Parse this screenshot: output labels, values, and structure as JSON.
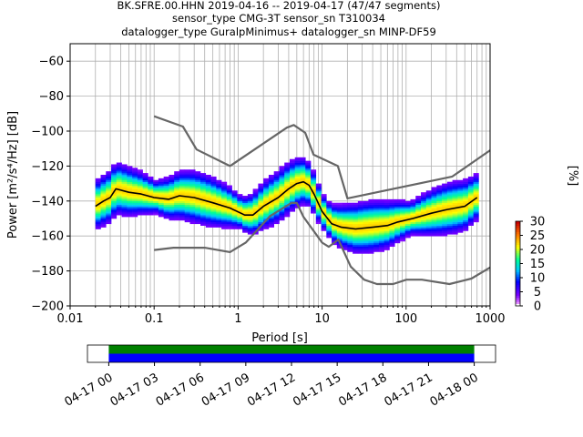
{
  "header": {
    "title_line1": "BK.SFRE.00.HHN   2019-04-16 -- 2019-04-17  (47/47 segments)",
    "title_line2": "sensor_type CMG-3T sensor_sn T310034",
    "title_line3": "datalogger_type GuralpMinimus+ datalogger_sn MINP-DF59"
  },
  "chart_data": [
    {
      "type": "heatmap",
      "title": "BK.SFRE.00.HHN   2019-04-16 -- 2019-04-17  (47/47 segments)",
      "xlabel": "Period [s]",
      "ylabel": "Power [m²/s⁴/Hz] [dB]",
      "x_scale": "log",
      "xlim": [
        0.01,
        1000
      ],
      "ylim": [
        -200,
        -50
      ],
      "x_ticks": [
        "0.01",
        "0.1",
        "1",
        "10",
        "100",
        "1000"
      ],
      "x_tick_values": [
        0.01,
        0.1,
        1,
        10,
        100,
        1000
      ],
      "y_ticks": [
        "−200",
        "−180",
        "−160",
        "−140",
        "−120",
        "−100",
        "−80",
        "−60"
      ],
      "y_tick_values": [
        -200,
        -180,
        -160,
        -140,
        -120,
        -100,
        -80,
        -60
      ],
      "grid": true,
      "colorbar": {
        "label": "[%]",
        "ticks": [
          "0",
          "5",
          "10",
          "15",
          "20",
          "25",
          "30"
        ],
        "range": [
          0,
          30
        ]
      },
      "series": [
        {
          "name": "",
          "role": "new-high-noise-model",
          "color": "#666666",
          "x": [
            0.1,
            0.22,
            0.32,
            0.8,
            3.8,
            4.6,
            6.3,
            7.9,
            15.4,
            20,
            354.8,
            1000
          ],
          "y": [
            -91.5,
            -97.4,
            -110.5,
            -120,
            -98,
            -96.5,
            -101,
            -113.5,
            -120,
            -138.5,
            -126,
            -111
          ]
        },
        {
          "name": "",
          "role": "new-low-noise-model",
          "color": "#666666",
          "x": [
            0.1,
            0.17,
            0.4,
            0.8,
            1.24,
            2.4,
            4.3,
            5,
            6,
            10,
            12,
            15.6,
            21.9,
            31.6,
            45,
            70,
            101,
            154,
            328,
            600,
            1000
          ],
          "y": [
            -168,
            -166.7,
            -166.7,
            -169.2,
            -163.7,
            -148.6,
            -141.1,
            -141.1,
            -149,
            -163.8,
            -166.2,
            -162.1,
            -177.5,
            -185,
            -187.5,
            -187.5,
            -185,
            -185,
            -187.5,
            -184.4,
            -178
          ]
        },
        {
          "name": "",
          "role": "mean-psd",
          "color": "#000000",
          "x": [
            0.02,
            0.025,
            0.03,
            0.035,
            0.05,
            0.07,
            0.1,
            0.15,
            0.2,
            0.3,
            0.5,
            0.8,
            1.2,
            1.5,
            2,
            3,
            4,
            5,
            6,
            7,
            8,
            10,
            13,
            17,
            25,
            40,
            60,
            80,
            120,
            200,
            300,
            500,
            700
          ],
          "y": [
            -143,
            -140,
            -138,
            -133,
            -135,
            -136,
            -138,
            -139,
            -137,
            -138,
            -141,
            -144,
            -148,
            -148,
            -143,
            -138,
            -133,
            -130,
            -129,
            -131,
            -136,
            -146,
            -153,
            -155,
            -156,
            -155,
            -154,
            -152,
            -150,
            -147,
            -145,
            -143,
            -138
          ]
        }
      ],
      "psd_spread_db": 5
    },
    {
      "type": "bar",
      "role": "data-coverage",
      "x_ticks": [
        "04-17 00",
        "04-17 03",
        "04-17 06",
        "04-17 09",
        "04-17 12",
        "04-17 15",
        "04-17 18",
        "04-17 21",
        "04-18 00"
      ],
      "xlim_hours": [
        -1.4,
        25.4
      ],
      "bars": [
        {
          "name": "",
          "color": "#008000",
          "start_hour": 0,
          "end_hour": 24
        },
        {
          "name": "",
          "color": "#0000ff",
          "start_hour": 0,
          "end_hour": 24
        }
      ]
    }
  ]
}
